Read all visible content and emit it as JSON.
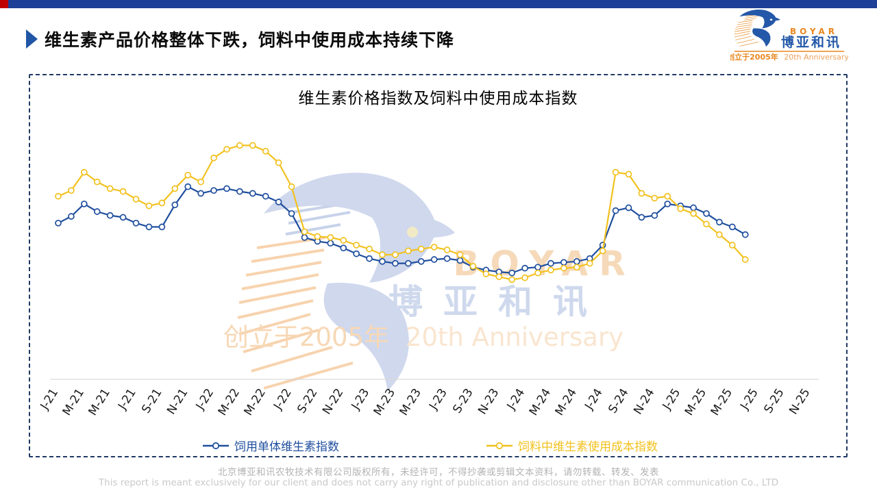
{
  "slide": {
    "title": "维生素产品价格整体下跌，饲料中使用成本持续下降"
  },
  "brand": {
    "en": "BOYAR",
    "cn": "博亚和讯",
    "tagline_cn": "创立于2005年",
    "tagline_en": "20th Anniversary"
  },
  "footer": {
    "line_cn": "北京博亚和讯农牧技术有限公司版权所有，未经许可，不得抄袭或剪辑文本资料，请勿转载、转发、发表",
    "line_en": "This report is meant exclusively for our client and does not carry any right of publication and disclosure other than BOYAR communication Co., LTD"
  },
  "colors": {
    "top_bar": "#1e3f96",
    "corner_square": "#c00000",
    "accent_blue": "#2156a6",
    "dashed_border": "#1f3864",
    "axis_line": "#d9d9d9",
    "series_blue": "#1f4e9e",
    "series_yellow": "#f2c11e"
  },
  "chart_data": {
    "type": "line",
    "title": "维生素价格指数及饲料中使用成本指数",
    "x_start": "2021-01",
    "x_interval": "month",
    "x_slots": 59,
    "tick_every": 2,
    "tick_labels": [
      "J-21",
      "M-21",
      "M-21",
      "J-21",
      "S-21",
      "N-21",
      "J-22",
      "M-22",
      "M-22",
      "J-22",
      "S-22",
      "N-22",
      "J-23",
      "M-23",
      "M-23",
      "J-23",
      "S-23",
      "N-23",
      "J-24",
      "M-24",
      "M-24",
      "J-24",
      "S-24",
      "N-24",
      "J-25",
      "M-25",
      "M-25",
      "J-25",
      "S-25",
      "N-25"
    ],
    "ylim": [
      0,
      280
    ],
    "grid": false,
    "y_axis_labels_visible": false,
    "legend_position": "bottom",
    "series": [
      {
        "name": "饲用单体维生素指数",
        "color": "#1f4e9e",
        "marker": "open-circle",
        "values": [
          163,
          170,
          183,
          175,
          171,
          169,
          163,
          159,
          159,
          182,
          201,
          194,
          197,
          199,
          196,
          194,
          191,
          185,
          173,
          148,
          144,
          142,
          137,
          131,
          126,
          123,
          121,
          121,
          123,
          125,
          126,
          124,
          117,
          114,
          112,
          111,
          116,
          117,
          121,
          122,
          123,
          126,
          140,
          176,
          179,
          169,
          171,
          183,
          181,
          179,
          173,
          164,
          159,
          151
        ]
      },
      {
        "name": "饲料中维生素使用成本指数",
        "color": "#f2c11e",
        "marker": "open-circle",
        "values": [
          191,
          197,
          216,
          206,
          199,
          196,
          188,
          181,
          184,
          199,
          213,
          206,
          231,
          240,
          244,
          244,
          238,
          226,
          201,
          154,
          149,
          148,
          145,
          140,
          136,
          130,
          130,
          134,
          136,
          138,
          135,
          130,
          118,
          110,
          107,
          104,
          106,
          111,
          114,
          116,
          117,
          121,
          134,
          216,
          214,
          194,
          189,
          191,
          178,
          173,
          162,
          151,
          140,
          125
        ]
      }
    ]
  }
}
